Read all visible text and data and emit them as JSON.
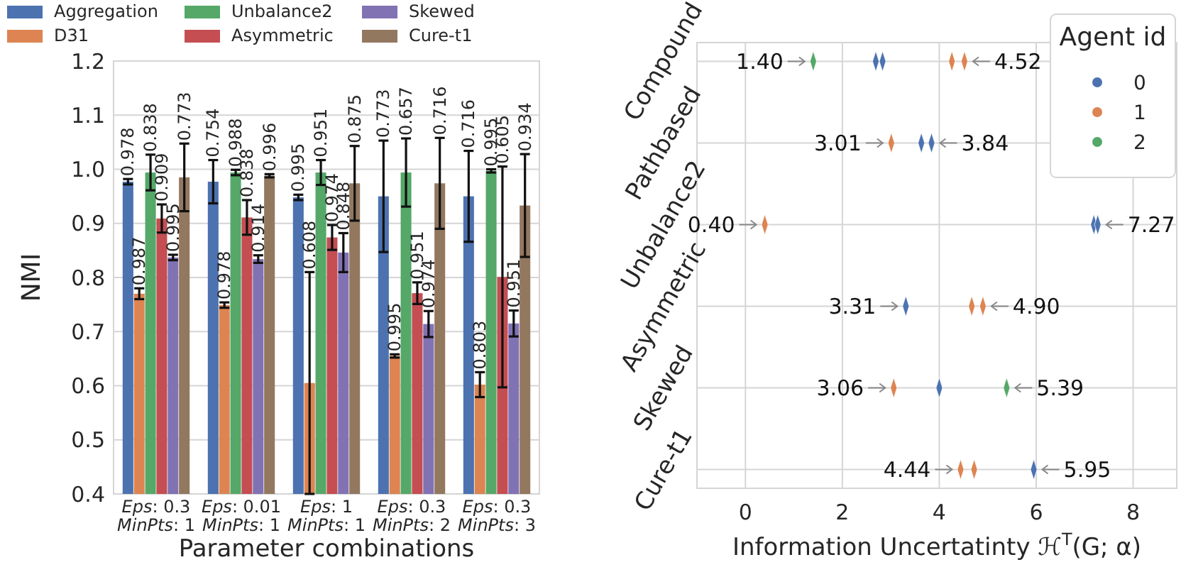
{
  "chart_data": [
    {
      "type": "bar",
      "ylabel": "NMI",
      "xlabel": "Parameter combinations",
      "legend": "top",
      "grid": "y",
      "ylim": [
        0.4,
        1.2
      ],
      "yticks": [
        0.4,
        0.5,
        0.6,
        0.7,
        0.8,
        0.9,
        {
          "value": 1,
          "label": "1.0"
        },
        1.1,
        1.2
      ],
      "annotations": [
        "0.978",
        "0.987",
        "0.838",
        "0.909",
        "0.995",
        "0.773",
        "0.754",
        "0.978",
        "0.988",
        "0.838",
        "0.914",
        "0.996",
        "0.995",
        "0.608",
        "0.951",
        "0.974",
        "0.848",
        "0.875",
        "0.773",
        "0.995",
        "0.657",
        "0.951",
        "0.974",
        "0.716",
        "0.716",
        "0.803",
        "0.995",
        "0.605",
        "0.951",
        "0.934"
      ],
      "categories": [
        "Eps: 0.3\nMinPts: 1",
        "Eps: 0.01\nMinPts: 1",
        "Eps: 1\nMinPts: 1",
        "Eps: 0.3\nMinPts: 2",
        "Eps: 0.3\nMinPts: 3"
      ],
      "series": [
        {
          "name": "Aggregation",
          "color": "#4c72b0",
          "values": [
            0.977,
            0.977,
            0.948,
            0.95,
            0.95
          ],
          "errors": [
            0.005,
            0.04,
            0.005,
            0.103,
            0.084
          ]
        },
        {
          "name": "D31",
          "color": "#dd8452",
          "values": [
            0.77,
            0.749,
            0.605,
            0.655,
            0.602
          ],
          "errors": [
            0.01,
            0.005,
            0.205,
            0.003,
            0.023
          ]
        },
        {
          "name": "Unbalance2",
          "color": "#55a868",
          "values": [
            0.994,
            0.994,
            0.994,
            0.994,
            0.997
          ],
          "errors": [
            0.033,
            0.005,
            0.023,
            0.063,
            0.003
          ]
        },
        {
          "name": "Asymmetric",
          "color": "#c44e52",
          "values": [
            0.909,
            0.911,
            0.874,
            0.771,
            0.801
          ],
          "errors": [
            0.026,
            0.032,
            0.023,
            0.02,
            0.204
          ]
        },
        {
          "name": "Skewed",
          "color": "#8172b3",
          "values": [
            0.837,
            0.834,
            0.846,
            0.714,
            0.715
          ],
          "errors": [
            0.005,
            0.007,
            0.036,
            0.024,
            0.024
          ]
        },
        {
          "name": "Cure-t1",
          "color": "#937860",
          "values": [
            0.985,
            0.988,
            0.974,
            0.974,
            0.933
          ],
          "errors": [
            0.0625,
            0.003,
            0.069,
            0.084,
            0.095
          ]
        }
      ]
    },
    {
      "type": "scatter",
      "orientation": "horizontal",
      "xlabel": "Information Uncertatinty ℋ$^{T}$(G; α)",
      "legend_title": "Agent id",
      "legend": "top right",
      "grid": true,
      "marker": "diamond",
      "xlim": [
        -1,
        8.9
      ],
      "xticks": [
        0,
        2,
        4,
        6,
        8
      ],
      "categories": [
        "Compound",
        "Pathbased",
        "Unbalance2",
        "Asymmetric",
        "Skewed",
        "Cure-t1"
      ],
      "series": [
        {
          "name": "0",
          "color": "#4c72b0",
          "x": [
            "Compound",
            "Compound",
            "Pathbased",
            "Pathbased",
            "Unbalance2",
            "Unbalance2",
            "Asymmetric",
            "Skewed",
            "Cure-t1"
          ],
          "values": [
            2.69,
            2.83,
            3.63,
            3.84,
            7.19,
            7.27,
            3.31,
            4.0,
            5.95
          ]
        },
        {
          "name": "1",
          "color": "#dd8452",
          "x": [
            "Compound",
            "Compound",
            "Pathbased",
            "Unbalance2",
            "Asymmetric",
            "Asymmetric",
            "Skewed",
            "Cure-t1",
            "Cure-t1"
          ],
          "values": [
            4.26,
            4.52,
            3.01,
            0.4,
            4.67,
            4.9,
            3.06,
            4.44,
            4.72
          ]
        },
        {
          "name": "2",
          "color": "#55a868",
          "x": [
            "Compound",
            "Skewed"
          ],
          "values": [
            1.4,
            5.39
          ]
        }
      ],
      "annotations": [
        {
          "text": "1.40",
          "x": 1.4,
          "y": "Compound"
        },
        {
          "text": "4.52",
          "x": 4.52,
          "y": "Compound"
        },
        {
          "text": "3.01",
          "x": 3.01,
          "y": "Pathbased"
        },
        {
          "text": "3.84",
          "x": 3.84,
          "y": "Pathbased"
        },
        {
          "text": "0.40",
          "x": 0.4,
          "y": "Unbalance2"
        },
        {
          "text": "7.27",
          "x": 7.27,
          "y": "Unbalance2"
        },
        {
          "text": "3.31",
          "x": 3.31,
          "y": "Asymmetric"
        },
        {
          "text": "4.90",
          "x": 4.9,
          "y": "Asymmetric"
        },
        {
          "text": "3.06",
          "x": 3.06,
          "y": "Skewed"
        },
        {
          "text": "5.39",
          "x": 5.39,
          "y": "Skewed"
        },
        {
          "text": "4.44",
          "x": 4.44,
          "y": "Cure-t1"
        },
        {
          "text": "5.95",
          "x": 5.95,
          "y": "Cure-t1"
        }
      ]
    }
  ]
}
